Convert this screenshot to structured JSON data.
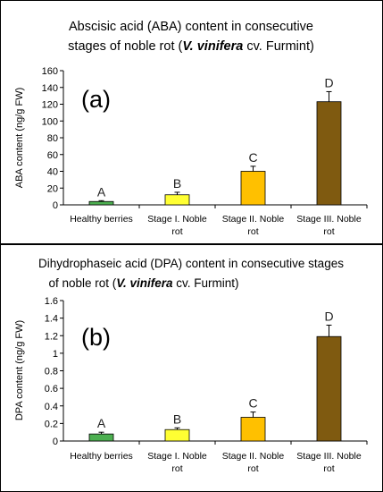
{
  "panels": [
    {
      "title_line1": "Abscisic acid (ABA) content in consecutive",
      "title_line2_pre": "stages of noble rot (",
      "title_line2_italic": "V. vinifera",
      "title_line2_post": " cv. Furmint)",
      "panel_label": "(a)"
    },
    {
      "title_line1": "Dihydrophaseic acid (DPA) content in consecutive stages",
      "title_line2_pre": "of noble rot (",
      "title_line2_italic": "V. vinifera",
      "title_line2_post": " cv. Furmint)",
      "panel_label": "(b)"
    }
  ],
  "chart_data": [
    {
      "type": "bar",
      "title": "Abscisic acid (ABA) content in consecutive stages of noble rot (V. vinifera cv. Furmint)",
      "ylabel": "ABA content (ng/g FW)",
      "xlabel": "",
      "ylim": [
        0,
        160
      ],
      "yticks": [
        "0",
        "20",
        "40",
        "60",
        "80",
        "100",
        "120",
        "140",
        "160"
      ],
      "categories": [
        [
          "Healthy berries"
        ],
        [
          "Stage I. Noble",
          "rot"
        ],
        [
          "Stage II. Noble",
          "rot"
        ],
        [
          "Stage III. Noble",
          "rot"
        ]
      ],
      "values": [
        4,
        12,
        40,
        123
      ],
      "errors": [
        1,
        3,
        6,
        12
      ],
      "letters": [
        "A",
        "B",
        "C",
        "D"
      ],
      "colors": [
        "#4caf50",
        "#ffff33",
        "#ffc000",
        "#7f5a10"
      ],
      "grid": false
    },
    {
      "type": "bar",
      "title": "Dihydrophaseic acid (DPA) content in consecutive stages of noble rot (V. vinifera cv. Furmint)",
      "ylabel": "DPA content (ng/g FW)",
      "xlabel": "",
      "ylim": [
        0,
        1.6
      ],
      "yticks": [
        "0",
        "0.2",
        "0.4",
        "0.6",
        "0.8",
        "1",
        "1.2",
        "1.4",
        "1.6"
      ],
      "categories": [
        [
          "Healthy berries"
        ],
        [
          "Stage I. Noble",
          "rot"
        ],
        [
          "Stage II. Noble",
          "rot"
        ],
        [
          "Stage III. Noble",
          "rot"
        ]
      ],
      "values": [
        0.08,
        0.13,
        0.27,
        1.19
      ],
      "errors": [
        0.02,
        0.02,
        0.06,
        0.13
      ],
      "letters": [
        "A",
        "B",
        "C",
        "D"
      ],
      "colors": [
        "#4caf50",
        "#ffff33",
        "#ffc000",
        "#7f5a10"
      ],
      "grid": false
    }
  ]
}
